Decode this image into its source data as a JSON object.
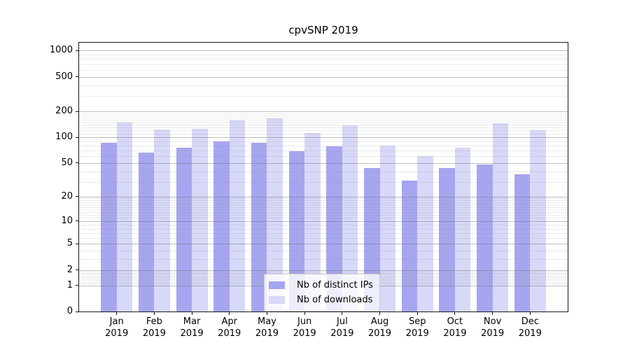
{
  "chart_data": {
    "type": "bar",
    "title": "cpvSNP 2019",
    "x_tick_labels": [
      [
        "Jan",
        "2019"
      ],
      [
        "Feb",
        "2019"
      ],
      [
        "Mar",
        "2019"
      ],
      [
        "Apr",
        "2019"
      ],
      [
        "May",
        "2019"
      ],
      [
        "Jun",
        "2019"
      ],
      [
        "Jul",
        "2019"
      ],
      [
        "Aug",
        "2019"
      ],
      [
        "Sep",
        "2019"
      ],
      [
        "Oct",
        "2019"
      ],
      [
        "Nov",
        "2019"
      ],
      [
        "Dec",
        "2019"
      ]
    ],
    "y_ticks": [
      1000,
      500,
      200,
      100,
      50,
      20,
      10,
      5,
      2,
      1,
      0
    ],
    "ylim": [
      0,
      1235
    ],
    "y_scale": "log10(1+y)",
    "grid": "horizontal major + minor",
    "legend_position": "lower center",
    "series": [
      {
        "name": "Nb of distinct IPs",
        "color": "#a6a6f0",
        "values": [
          87,
          66,
          76,
          90,
          87,
          69,
          78,
          44,
          31,
          44,
          48,
          37
        ]
      },
      {
        "name": "Nb of downloads",
        "color": "#d8d8f8",
        "values": [
          148,
          123,
          125,
          158,
          165,
          113,
          139,
          80,
          60,
          75,
          146,
          121
        ]
      }
    ]
  }
}
